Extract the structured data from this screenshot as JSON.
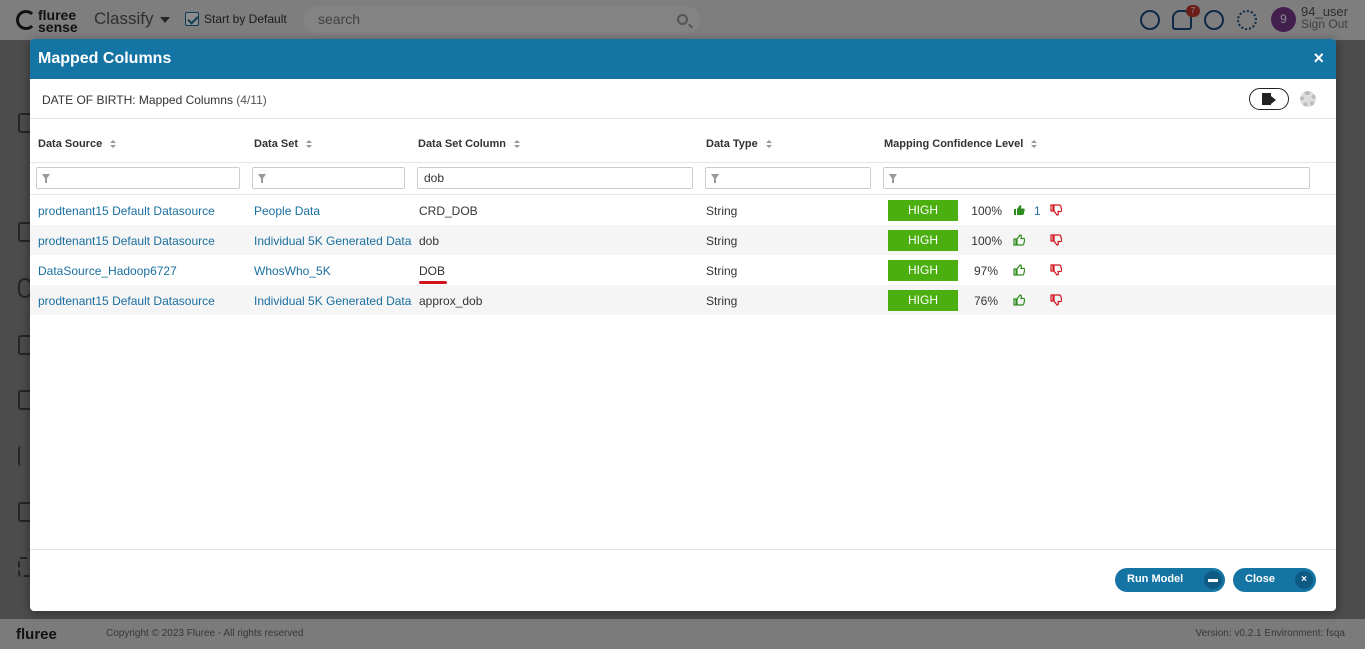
{
  "app": {
    "logo_line1": "fluree",
    "logo_line2": "sense",
    "name": "Classify",
    "start_by_default": "Start by Default",
    "search_placeholder": "search",
    "notif_count": "7",
    "avatar_initial": "9",
    "user_name": "94_user",
    "sign_out": "Sign Out"
  },
  "footer": {
    "logo": "fluree",
    "copyright": "Copyright © 2023 Fluree - All rights reserved",
    "version": "Version: v0.2.1   Environment: fsqa"
  },
  "modal": {
    "title": "Mapped Columns",
    "close_icon": "×",
    "subtitle": "DATE OF BIRTH: Mapped Columns",
    "subtitle_count": "(4/11)",
    "columns": [
      "Data Source",
      "Data Set",
      "Data Set Column",
      "Data Type",
      "Mapping Confidence Level"
    ],
    "filters": {
      "data_source": "",
      "data_set": "",
      "data_set_column": "dob",
      "data_type": "",
      "confidence": ""
    },
    "rows": [
      {
        "data_source": "prodtenant15 Default Datasource",
        "data_set": "People Data",
        "column": "CRD_DOB",
        "type": "String",
        "level": "HIGH",
        "pct": "100%",
        "votes": "1",
        "liked": true
      },
      {
        "data_source": "prodtenant15 Default Datasource",
        "data_set": "Individual 5K Generated Data",
        "column": "dob",
        "type": "String",
        "level": "HIGH",
        "pct": "100%",
        "votes": "",
        "liked": false
      },
      {
        "data_source": "DataSource_Hadoop6727",
        "data_set": "WhosWho_5K",
        "column": "DOB",
        "type": "String",
        "level": "HIGH",
        "pct": "97%",
        "votes": "",
        "liked": false
      },
      {
        "data_source": "prodtenant15 Default Datasource",
        "data_set": "Individual 5K Generated Data",
        "column": "approx_dob",
        "type": "String",
        "level": "HIGH",
        "pct": "76%",
        "votes": "",
        "liked": false
      }
    ],
    "run_model": "Run Model",
    "close": "Close",
    "close_btn_icon": "×"
  },
  "colors": {
    "header": "#1474a4",
    "high": "#4caf10",
    "thumb_up": "#2e8b1e",
    "thumb_down": "#d0141c"
  }
}
